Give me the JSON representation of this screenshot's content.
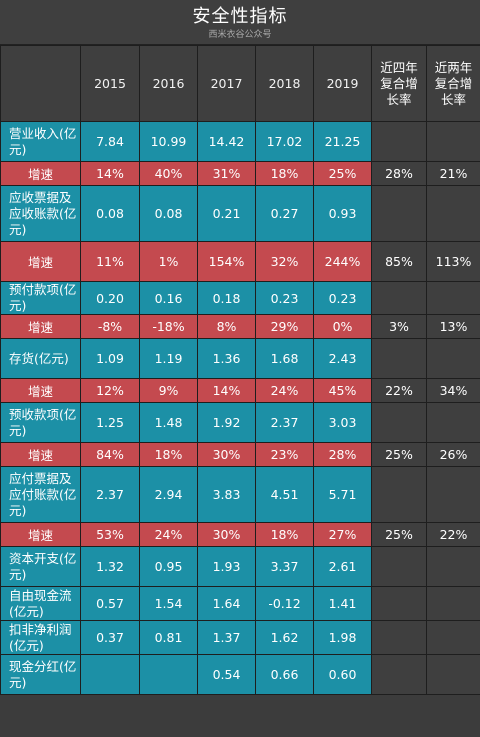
{
  "title": "安全性指标",
  "watermark": "西米衣谷公众号",
  "header": {
    "years": [
      "2015",
      "2016",
      "2017",
      "2018",
      "2019"
    ],
    "cagr4": "近四年复合增长率",
    "cagr2": "近两年复合增长率"
  },
  "rows": [
    {
      "type": "metric",
      "label": "营业收入(亿元)",
      "values": [
        "7.84",
        "10.99",
        "14.42",
        "17.02",
        "21.25"
      ],
      "cagr4": "",
      "cagr2": ""
    },
    {
      "type": "growth",
      "label": "增速",
      "values": [
        "14%",
        "40%",
        "31%",
        "18%",
        "25%"
      ],
      "cagr4": "28%",
      "cagr2": "21%"
    },
    {
      "type": "metric",
      "label": "应收票据及应收账款(亿元)",
      "values": [
        "0.08",
        "0.08",
        "0.21",
        "0.27",
        "0.93"
      ],
      "cagr4": "",
      "cagr2": ""
    },
    {
      "type": "growth",
      "label": "增速",
      "values": [
        "11%",
        "1%",
        "154%",
        "32%",
        "244%"
      ],
      "cagr4": "85%",
      "cagr2": "113%"
    },
    {
      "type": "metric",
      "label": "预付款项(亿元)",
      "values": [
        "0.20",
        "0.16",
        "0.18",
        "0.23",
        "0.23"
      ],
      "cagr4": "",
      "cagr2": ""
    },
    {
      "type": "growth",
      "label": "增速",
      "values": [
        "-8%",
        "-18%",
        "8%",
        "29%",
        "0%"
      ],
      "cagr4": "3%",
      "cagr2": "13%"
    },
    {
      "type": "metric",
      "label": "存货(亿元)",
      "values": [
        "1.09",
        "1.19",
        "1.36",
        "1.68",
        "2.43"
      ],
      "cagr4": "",
      "cagr2": ""
    },
    {
      "type": "growth",
      "label": "增速",
      "values": [
        "12%",
        "9%",
        "14%",
        "24%",
        "45%"
      ],
      "cagr4": "22%",
      "cagr2": "34%"
    },
    {
      "type": "metric",
      "label": "预收款项(亿元)",
      "values": [
        "1.25",
        "1.48",
        "1.92",
        "2.37",
        "3.03"
      ],
      "cagr4": "",
      "cagr2": ""
    },
    {
      "type": "growth",
      "label": "增速",
      "values": [
        "84%",
        "18%",
        "30%",
        "23%",
        "28%"
      ],
      "cagr4": "25%",
      "cagr2": "26%"
    },
    {
      "type": "metric",
      "label": "应付票据及应付账款(亿元)",
      "values": [
        "2.37",
        "2.94",
        "3.83",
        "4.51",
        "5.71"
      ],
      "cagr4": "",
      "cagr2": ""
    },
    {
      "type": "growth",
      "label": "增速",
      "values": [
        "53%",
        "24%",
        "30%",
        "18%",
        "27%"
      ],
      "cagr4": "25%",
      "cagr2": "22%"
    },
    {
      "type": "metric",
      "label": "资本开支(亿元)",
      "values": [
        "1.32",
        "0.95",
        "1.93",
        "3.37",
        "2.61"
      ],
      "cagr4": "",
      "cagr2": ""
    },
    {
      "type": "metric",
      "label": "自由现金流(亿元)",
      "values": [
        "0.57",
        "1.54",
        "1.64",
        "-0.12",
        "1.41"
      ],
      "cagr4": "",
      "cagr2": ""
    },
    {
      "type": "metric",
      "label": "扣非净利润(亿元)",
      "values": [
        "0.37",
        "0.81",
        "1.37",
        "1.62",
        "1.98"
      ],
      "cagr4": "",
      "cagr2": ""
    },
    {
      "type": "metric",
      "label": "现金分红(亿元)",
      "values": [
        "",
        "",
        "0.54",
        "0.66",
        "0.60"
      ],
      "cagr4": "",
      "cagr2": ""
    }
  ]
}
